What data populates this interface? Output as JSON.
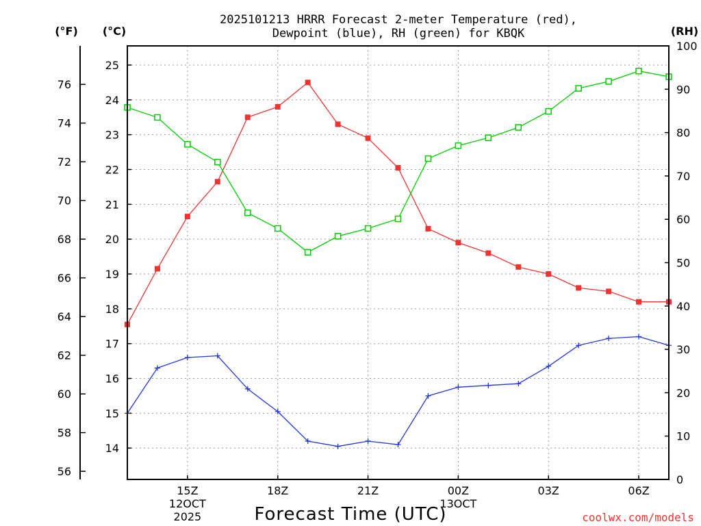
{
  "chart_data": {
    "type": "line",
    "title_lines": [
      "2025101213 HRRR Forecast 2-meter Temperature (red),",
      "Dewpoint (blue), RH (green) for KBQK"
    ],
    "xlabel": "Forecast Time (UTC)",
    "credit": "coolwx.com/models",
    "units": {
      "fahrenheit": "(°F)",
      "celsius": "(°C)",
      "rh": "(RH)"
    },
    "x_hours": [
      13,
      14,
      15,
      16,
      17,
      18,
      19,
      20,
      21,
      22,
      23,
      24,
      25,
      26,
      27,
      28,
      29,
      30,
      31
    ],
    "x_range": [
      13,
      31
    ],
    "x_ticks": [
      {
        "hour": 15,
        "lines": [
          "15Z",
          "12OCT",
          "2025"
        ]
      },
      {
        "hour": 18,
        "lines": [
          "18Z"
        ]
      },
      {
        "hour": 21,
        "lines": [
          "21Z"
        ]
      },
      {
        "hour": 24,
        "lines": [
          "00Z",
          "13OCT"
        ]
      },
      {
        "hour": 27,
        "lines": [
          "03Z"
        ]
      },
      {
        "hour": 30,
        "lines": [
          "06Z"
        ]
      }
    ],
    "celsius_range": [
      13.1,
      25.55
    ],
    "celsius_ticks": [
      14,
      15,
      16,
      17,
      18,
      19,
      20,
      21,
      22,
      23,
      24,
      25
    ],
    "fahrenheit_ticks": [
      56,
      58,
      60,
      62,
      64,
      66,
      68,
      70,
      72,
      74,
      76
    ],
    "rh_range": [
      0,
      100
    ],
    "rh_ticks": [
      0,
      10,
      20,
      30,
      40,
      50,
      60,
      70,
      80,
      90,
      100
    ],
    "series": [
      {
        "name": "2-meter Temperature",
        "axis": "celsius",
        "color": "#ee3333",
        "marker": "filled-square",
        "values": [
          17.55,
          19.15,
          20.65,
          21.65,
          23.5,
          23.8,
          24.5,
          23.3,
          22.9,
          22.05,
          20.3,
          19.9,
          19.6,
          19.2,
          19.0,
          18.6,
          18.5,
          18.2,
          18.2
        ]
      },
      {
        "name": "Dewpoint",
        "axis": "celsius",
        "color": "#2233dd",
        "marker": "plus",
        "values": [
          15.0,
          16.3,
          16.6,
          16.65,
          15.7,
          15.05,
          14.2,
          14.05,
          14.2,
          14.1,
          15.5,
          15.75,
          15.8,
          15.85,
          16.35,
          16.95,
          17.15,
          17.2,
          16.95
        ]
      },
      {
        "name": "RH",
        "axis": "rh",
        "color": "#00cc00",
        "marker": "open-square",
        "values": [
          85.8,
          83.5,
          77.3,
          73.2,
          61.5,
          57.9,
          52.4,
          56.1,
          57.9,
          60.1,
          74.0,
          77.0,
          78.8,
          81.2,
          84.9,
          90.2,
          91.8,
          94.2,
          92.9
        ]
      }
    ]
  }
}
